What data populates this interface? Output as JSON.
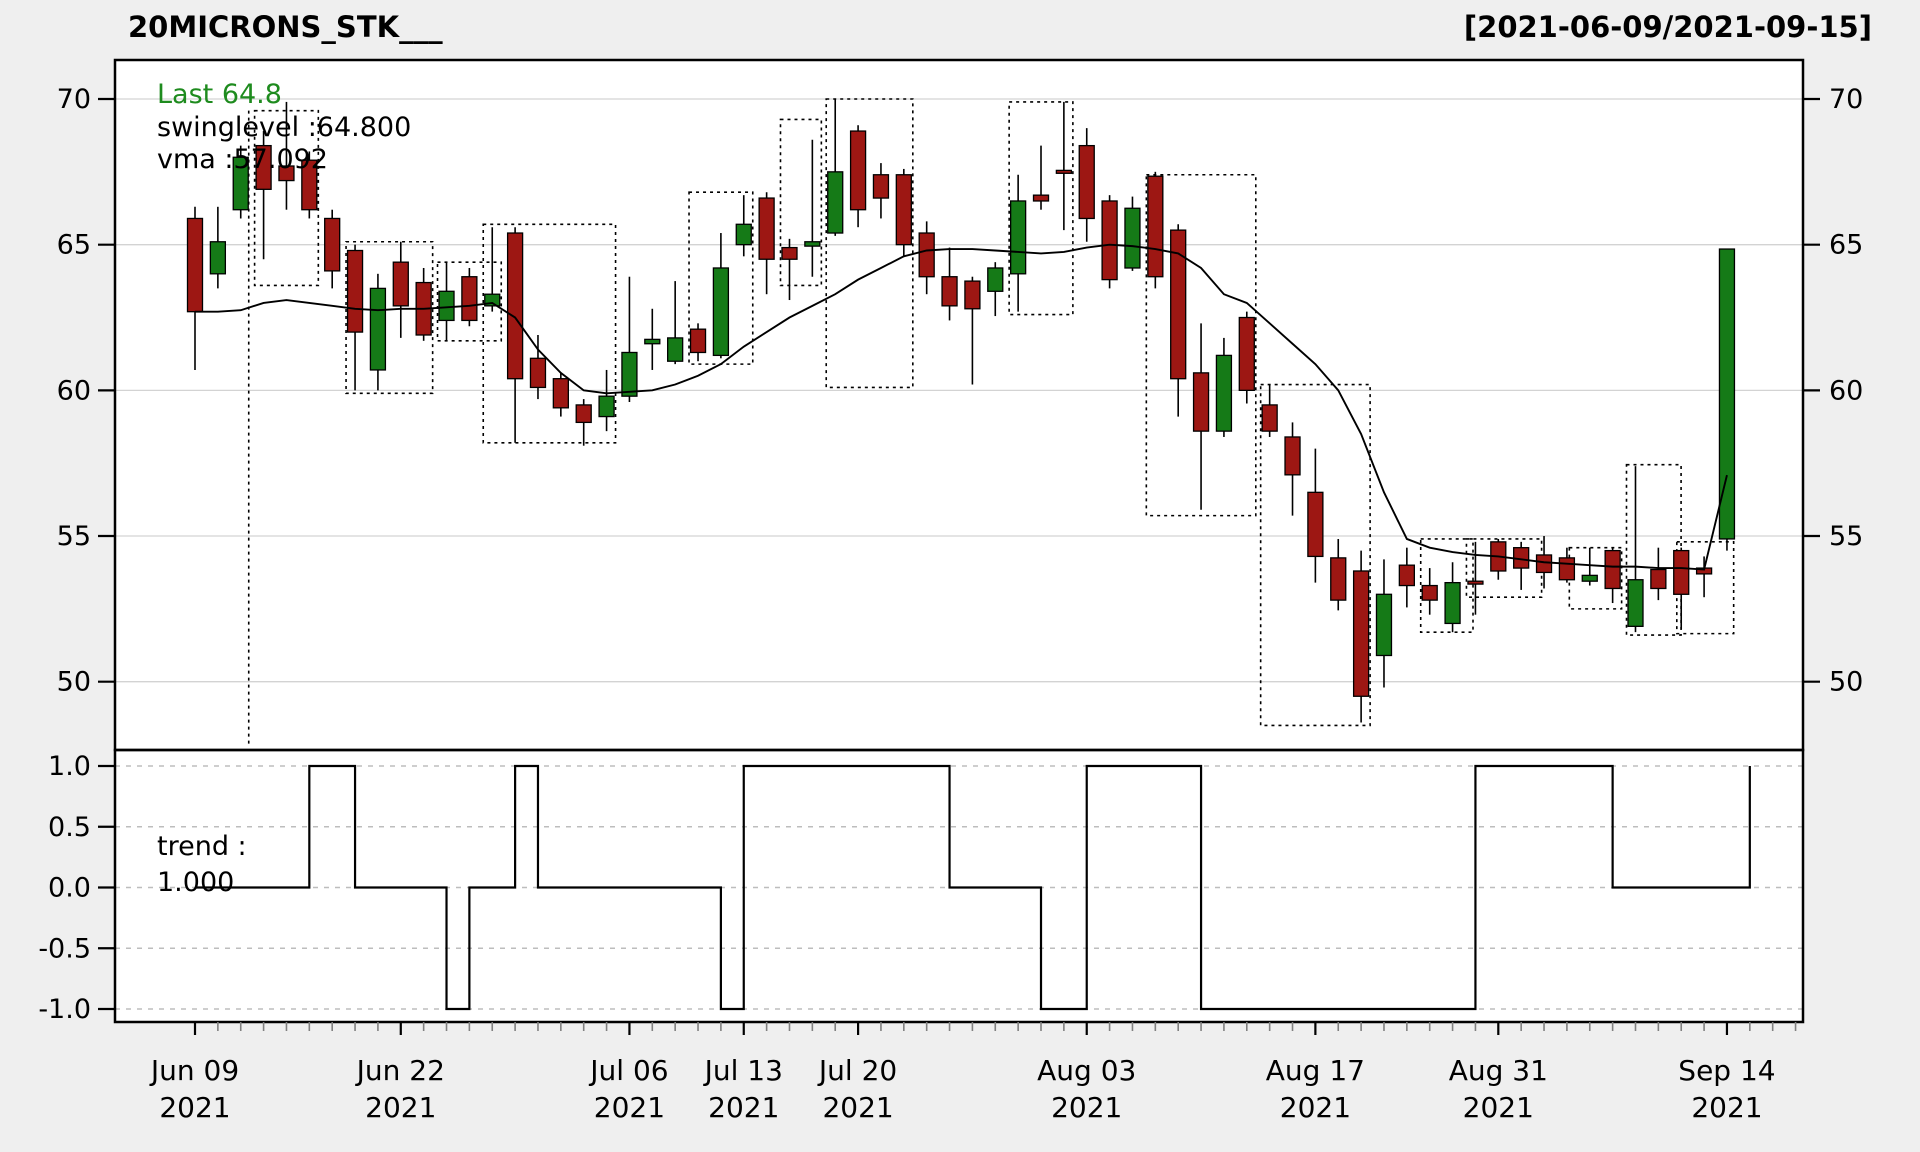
{
  "header": {
    "title": "20MICRONS_STK___",
    "date_range": "[2021-06-09/2021-09-15]"
  },
  "annotations": {
    "last": "Last 64.8",
    "swinglevel": "swinglevel :64.800",
    "vma": "vma :57.092",
    "trend_line1": "trend :",
    "trend_line2": "1.000"
  },
  "colors": {
    "up": "#157a17",
    "down": "#9d1713",
    "last_text": "#1e8b1e",
    "grid": "#d3d3d3",
    "trend_grid": "#bdbdbd",
    "bg": "#efefef",
    "panel": "#ffffff",
    "line": "#000000",
    "minor_tick": "#808080"
  },
  "chart_data": {
    "type": "candlestick",
    "title": "20MICRONS_STK___",
    "date_range": "[2021-06-09/2021-09-15]",
    "last_value": 64.8,
    "swinglevel_value": 64.8,
    "vma_value": 57.092,
    "trend_value": 1.0,
    "y_ticks": [
      70,
      65,
      60,
      55,
      50
    ],
    "price_ylim": [
      47.7,
      71.3
    ],
    "trend_ticks": [
      "1.0",
      "0.5",
      "0.0",
      "-0.5",
      "-1.0"
    ],
    "trend_tick_values": [
      1,
      0.5,
      0,
      -0.5,
      -1
    ],
    "trend_ylim": [
      -1.12,
      1.12
    ],
    "x_labels": [
      {
        "line1": "Jun 09",
        "line2": "2021",
        "idx": 0
      },
      {
        "line1": "Jun 22",
        "line2": "2021",
        "idx": 9
      },
      {
        "line1": "Jul 06",
        "line2": "2021",
        "idx": 19
      },
      {
        "line1": "Jul 13",
        "line2": "2021",
        "idx": 24
      },
      {
        "line1": "Jul 20",
        "line2": "2021",
        "idx": 29
      },
      {
        "line1": "Aug 03",
        "line2": "2021",
        "idx": 39
      },
      {
        "line1": "Aug 17",
        "line2": "2021",
        "idx": 49
      },
      {
        "line1": "Aug 31",
        "line2": "2021",
        "idx": 57
      },
      {
        "line1": "Sep 14",
        "line2": "2021",
        "idx": 67
      }
    ],
    "candles": [
      [
        65.9,
        66.3,
        60.7,
        62.7
      ],
      [
        64.0,
        66.3,
        63.5,
        65.1
      ],
      [
        66.2,
        68.4,
        65.9,
        68.0
      ],
      [
        68.4,
        68.9,
        64.5,
        66.9
      ],
      [
        67.7,
        69.9,
        66.2,
        67.2
      ],
      [
        67.9,
        68.2,
        65.9,
        66.2
      ],
      [
        65.9,
        66.2,
        63.5,
        64.1
      ],
      [
        64.8,
        65.0,
        60.0,
        62.0
      ],
      [
        60.7,
        64.0,
        60.0,
        63.5
      ],
      [
        64.4,
        65.1,
        61.8,
        62.9
      ],
      [
        63.7,
        64.2,
        61.7,
        61.9
      ],
      [
        62.4,
        64.4,
        61.7,
        63.4
      ],
      [
        63.9,
        64.2,
        62.2,
        62.4
      ],
      [
        62.9,
        65.6,
        62.7,
        63.3
      ],
      [
        65.4,
        65.6,
        58.2,
        60.4
      ],
      [
        61.1,
        61.9,
        59.7,
        60.1
      ],
      [
        60.4,
        60.6,
        59.1,
        59.4
      ],
      [
        59.5,
        59.7,
        58.1,
        58.9
      ],
      [
        59.1,
        60.7,
        58.6,
        59.8
      ],
      [
        59.8,
        63.9,
        59.6,
        61.3
      ],
      [
        61.6,
        62.8,
        60.7,
        61.75
      ],
      [
        61.0,
        63.75,
        60.9,
        61.8
      ],
      [
        62.1,
        62.3,
        61.0,
        61.3
      ],
      [
        61.2,
        65.4,
        61.1,
        64.2
      ],
      [
        65.0,
        66.7,
        64.6,
        65.7
      ],
      [
        66.6,
        66.8,
        63.3,
        64.5
      ],
      [
        64.9,
        65.2,
        63.1,
        64.5
      ],
      [
        64.95,
        68.6,
        63.9,
        65.1
      ],
      [
        65.4,
        70.0,
        65.3,
        67.5
      ],
      [
        68.9,
        69.1,
        65.6,
        66.2
      ],
      [
        67.4,
        67.8,
        65.9,
        66.6
      ],
      [
        67.4,
        67.6,
        64.6,
        65.0
      ],
      [
        65.4,
        65.8,
        63.3,
        63.9
      ],
      [
        63.9,
        64.9,
        62.4,
        62.9
      ],
      [
        63.75,
        63.9,
        60.2,
        62.8
      ],
      [
        63.4,
        64.4,
        62.55,
        64.2
      ],
      [
        64.0,
        67.4,
        62.7,
        66.5
      ],
      [
        66.7,
        68.4,
        66.2,
        66.5
      ],
      [
        67.55,
        69.9,
        65.5,
        67.45
      ],
      [
        68.4,
        69.0,
        65.1,
        65.9
      ],
      [
        66.5,
        66.7,
        63.5,
        63.8
      ],
      [
        64.2,
        66.65,
        64.1,
        66.25
      ],
      [
        67.35,
        67.5,
        63.5,
        63.9
      ],
      [
        65.5,
        65.7,
        59.1,
        60.4
      ],
      [
        60.6,
        62.3,
        55.9,
        58.6
      ],
      [
        58.6,
        61.8,
        58.4,
        61.2
      ],
      [
        62.5,
        62.7,
        59.55,
        60.0
      ],
      [
        59.5,
        60.2,
        58.4,
        58.6
      ],
      [
        58.4,
        58.9,
        55.7,
        57.1
      ],
      [
        56.5,
        58.0,
        53.4,
        54.3
      ],
      [
        54.25,
        54.9,
        52.45,
        52.8
      ],
      [
        53.8,
        54.5,
        48.6,
        49.5
      ],
      [
        50.9,
        54.2,
        49.8,
        53.0
      ],
      [
        54.0,
        54.6,
        52.55,
        53.3
      ],
      [
        53.3,
        53.9,
        52.3,
        52.8
      ],
      [
        52.0,
        54.1,
        51.7,
        53.4
      ],
      [
        53.45,
        54.8,
        52.3,
        53.35
      ],
      [
        54.8,
        54.9,
        53.5,
        53.8
      ],
      [
        54.6,
        54.8,
        53.15,
        53.9
      ],
      [
        54.35,
        55.0,
        53.2,
        53.75
      ],
      [
        54.25,
        54.6,
        53.4,
        53.5
      ],
      [
        53.45,
        54.6,
        53.3,
        53.65
      ],
      [
        54.5,
        54.6,
        52.7,
        53.2
      ],
      [
        51.9,
        57.4,
        51.7,
        53.5
      ],
      [
        53.85,
        54.6,
        52.8,
        53.2
      ],
      [
        54.5,
        54.6,
        51.8,
        53.0
      ],
      [
        53.9,
        54.3,
        52.9,
        53.7
      ],
      [
        54.9,
        64.85,
        54.5,
        64.85
      ]
    ],
    "vma": [
      62.7,
      62.7,
      62.75,
      63.0,
      63.1,
      63.0,
      62.9,
      62.8,
      62.75,
      62.8,
      62.8,
      62.85,
      62.9,
      63.0,
      62.5,
      61.4,
      60.6,
      60.0,
      59.9,
      59.95,
      60.0,
      60.2,
      60.5,
      60.9,
      61.5,
      62.0,
      62.5,
      62.9,
      63.3,
      63.8,
      64.2,
      64.6,
      64.8,
      64.85,
      64.85,
      64.8,
      64.75,
      64.7,
      64.75,
      64.9,
      65.0,
      64.95,
      64.85,
      64.7,
      64.2,
      63.3,
      63.0,
      62.3,
      61.6,
      60.9,
      60.0,
      58.5,
      56.5,
      54.9,
      54.6,
      54.45,
      54.35,
      54.3,
      54.2,
      54.1,
      54.05,
      54.0,
      53.95,
      53.95,
      53.9,
      53.9,
      53.85,
      57.09
    ],
    "trend": [
      0,
      0,
      0,
      0,
      0,
      1,
      1,
      0,
      0,
      0,
      0,
      -1,
      0,
      0,
      1,
      0,
      0,
      0,
      0,
      0,
      0,
      0,
      0,
      -1,
      1,
      1,
      1,
      1,
      1,
      1,
      1,
      1,
      1,
      0,
      0,
      0,
      0,
      -1,
      -1,
      1,
      1,
      1,
      1,
      1,
      -1,
      -1,
      -1,
      -1,
      -1,
      -1,
      -1,
      -1,
      -1,
      -1,
      -1,
      -1,
      1,
      1,
      1,
      1,
      1,
      1,
      0,
      0,
      0,
      0,
      0,
      0,
      1
    ],
    "swing_boxes": [
      [
        3,
        5,
        69.6,
        63.6
      ],
      [
        7,
        10,
        65.1,
        59.9
      ],
      [
        11,
        13,
        64.4,
        61.7
      ],
      [
        13,
        18,
        65.7,
        58.2
      ],
      [
        22,
        24,
        66.8,
        60.9
      ],
      [
        26,
        27,
        69.3,
        63.6
      ],
      [
        28,
        31,
        70.0,
        60.1
      ],
      [
        36,
        38,
        69.9,
        62.6
      ],
      [
        42,
        46,
        67.4,
        55.7
      ],
      [
        47,
        51,
        60.2,
        48.5
      ],
      [
        54,
        55.5,
        54.9,
        51.7
      ],
      [
        56,
        58.5,
        54.9,
        52.9
      ],
      [
        60.5,
        62,
        54.6,
        52.5
      ],
      [
        63,
        64.6,
        57.45,
        51.6
      ],
      [
        65.2,
        66.9,
        54.8,
        51.65
      ]
    ],
    "swing_vlines": [
      [
        2.35,
        69.6,
        47.8
      ]
    ]
  }
}
